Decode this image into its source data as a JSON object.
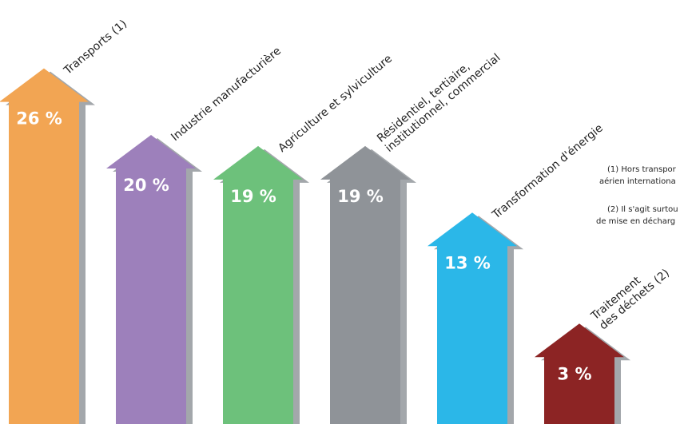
{
  "chart_data": {
    "type": "arrow-bar",
    "categories": [
      "Transports (1)",
      "Industrie manufacturière",
      "Agriculture et sylviculture",
      "Résidentiel, tertiaire,\ninstitutionnel, commercial",
      "Transformation d'énergie",
      "Traitement\ndes déchets (2)"
    ],
    "values": [
      26,
      20,
      19,
      19,
      13,
      3
    ],
    "value_labels": [
      "26 %",
      "20 %",
      "19 %",
      "19 %",
      "13 %",
      "3 %"
    ],
    "colors": [
      "#f2a553",
      "#9d80bb",
      "#6dc17b",
      "#8f9398",
      "#2bb7e8",
      "#8c2424"
    ],
    "annotations": [
      "(1) Hors transpor",
      "aérien internationa",
      "(2) Il s'agit surtou",
      "de mise en décharg"
    ]
  }
}
